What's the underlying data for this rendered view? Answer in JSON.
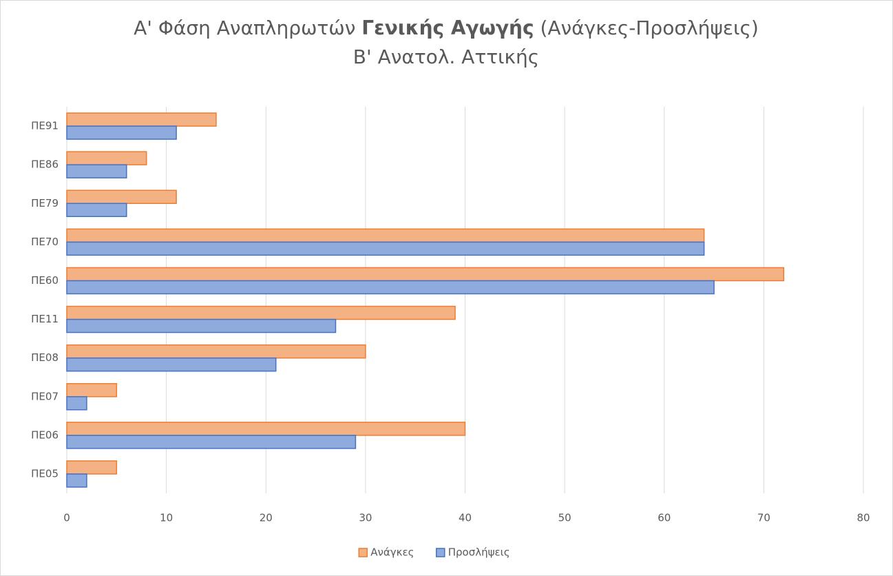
{
  "chart_data": {
    "type": "bar",
    "orientation": "horizontal",
    "title_parts": [
      {
        "text": "Α' Φάση Αναπληρωτών"
      },
      {
        "text": "Γενικής Αγωγής",
        "bold": true
      },
      {
        "text": "(Ανάγκες-Προσλήψεις)"
      }
    ],
    "subtitle": "Β' Ανατολ. Αττικής",
    "categories": [
      "ΠΕ05",
      "ΠΕ06",
      "ΠΕ07",
      "ΠΕ08",
      "ΠΕ11",
      "ΠΕ60",
      "ΠΕ70",
      "ΠΕ79",
      "ΠΕ86",
      "ΠΕ91"
    ],
    "series": [
      {
        "name": "Ανάγκες",
        "color": "#f4b183",
        "edge": "#ed7d31",
        "values": [
          5,
          40,
          5,
          30,
          39,
          72,
          64,
          11,
          8,
          15
        ]
      },
      {
        "name": "Προσλήψεις",
        "color": "#8faadc",
        "edge": "#4472c4",
        "values": [
          2,
          29,
          2,
          21,
          27,
          65,
          64,
          6,
          6,
          11
        ]
      }
    ],
    "xlim": [
      0,
      80
    ],
    "xticks": [
      0,
      10,
      20,
      30,
      40,
      50,
      60,
      70,
      80
    ],
    "grid": true,
    "legend": "bottom"
  }
}
